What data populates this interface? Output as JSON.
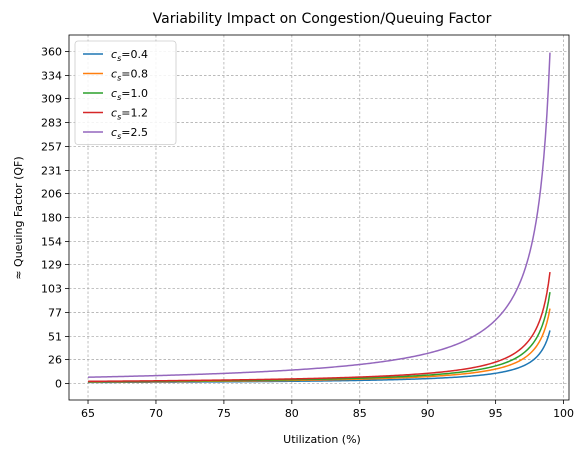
{
  "chart_data": {
    "type": "line",
    "title": "Variability Impact on Congestion/Queuing Factor",
    "xlabel": "Utilization (%)",
    "ylabel": "≈ Queuing Factor (QF)",
    "xlim": [
      63.6,
      100.4
    ],
    "ylim": [
      -18,
      378
    ],
    "xticks": [
      65,
      70,
      75,
      80,
      85,
      90,
      95,
      100
    ],
    "yticks": [
      0,
      26,
      51,
      77,
      103,
      129,
      154,
      180,
      206,
      231,
      257,
      283,
      309,
      334,
      360
    ],
    "grid": true,
    "legend_position": "top-left",
    "x_range": [
      65,
      99
    ],
    "formula": "((1 + cs^2) / 2) * (u / (1 - u))",
    "series": [
      {
        "name": "=0.4",
        "name_prefix": "c",
        "name_sub": "s",
        "cs": 0.4,
        "color": "#1f77b4"
      },
      {
        "name": "=0.8",
        "name_prefix": "c",
        "name_sub": "s",
        "cs": 0.8,
        "color": "#ff7f0e"
      },
      {
        "name": "=1.0",
        "name_prefix": "c",
        "name_sub": "s",
        "cs": 1.0,
        "color": "#2ca02c"
      },
      {
        "name": "=1.2",
        "name_prefix": "c",
        "name_sub": "s",
        "cs": 1.2,
        "color": "#d62728"
      },
      {
        "name": "=2.5",
        "name_prefix": "c",
        "name_sub": "s",
        "cs": 2.5,
        "color": "#9467bd"
      }
    ]
  }
}
